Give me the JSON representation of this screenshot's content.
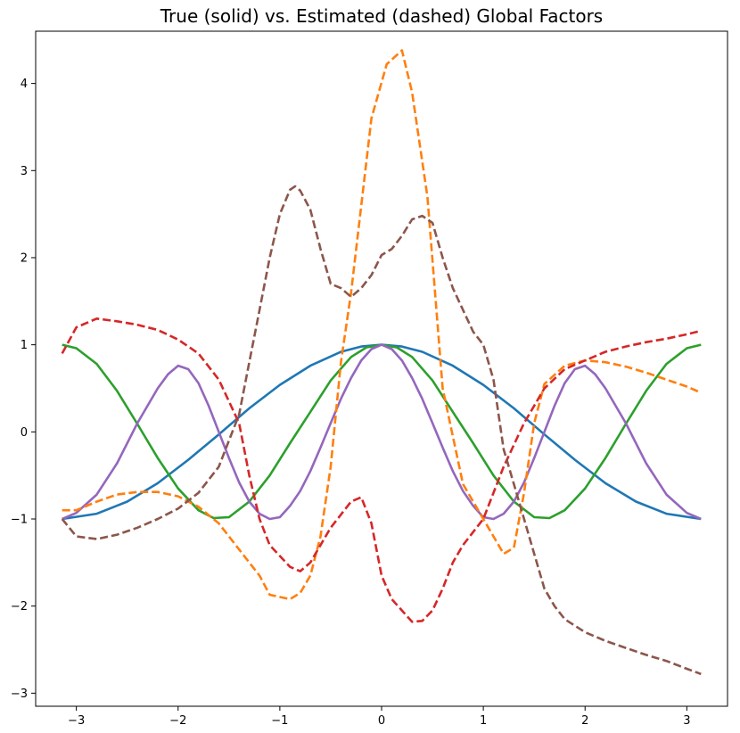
{
  "chart_data": {
    "type": "line",
    "title": "True (solid) vs. Estimated (dashed) Global Factors",
    "xlabel": "",
    "ylabel": "",
    "xlim": [
      -3.4,
      3.4
    ],
    "ylim": [
      -3.15,
      4.6
    ],
    "xticks": [
      -3,
      -2,
      -1,
      0,
      1,
      2,
      3
    ],
    "xtick_labels": [
      "−3",
      "−2",
      "−1",
      "0",
      "1",
      "2",
      "3"
    ],
    "yticks": [
      -3,
      -2,
      -1,
      0,
      1,
      2,
      3,
      4
    ],
    "ytick_labels": [
      "−3",
      "−2",
      "−1",
      "0",
      "1",
      "2",
      "3",
      "4"
    ],
    "grid": false,
    "legend": "none",
    "series": [
      {
        "color": "#1f77b4",
        "style": "solid",
        "x": [
          -3.14,
          -2.8,
          -2.5,
          -2.2,
          -1.9,
          -1.6,
          -1.3,
          -1.0,
          -0.7,
          -0.4,
          -0.2,
          0,
          0.2,
          0.4,
          0.7,
          1.0,
          1.3,
          1.6,
          1.9,
          2.2,
          2.5,
          2.8,
          3.14
        ],
        "y": [
          -1.0,
          -0.94,
          -0.8,
          -0.59,
          -0.32,
          -0.03,
          0.27,
          0.54,
          0.76,
          0.92,
          0.98,
          1.0,
          0.98,
          0.92,
          0.76,
          0.54,
          0.27,
          -0.03,
          -0.32,
          -0.59,
          -0.8,
          -0.94,
          -1.0
        ]
      },
      {
        "color": "#2ca02c",
        "style": "solid",
        "x": [
          -3.14,
          -3.0,
          -2.8,
          -2.6,
          -2.4,
          -2.2,
          -2.0,
          -1.8,
          -1.65,
          -1.5,
          -1.3,
          -1.1,
          -0.9,
          -0.7,
          -0.5,
          -0.3,
          -0.15,
          0,
          0.15,
          0.3,
          0.5,
          0.7,
          0.9,
          1.1,
          1.3,
          1.5,
          1.65,
          1.8,
          2.0,
          2.2,
          2.4,
          2.6,
          2.8,
          3.0,
          3.14
        ],
        "y": [
          1.0,
          0.96,
          0.78,
          0.47,
          0.09,
          -0.3,
          -0.65,
          -0.9,
          -0.99,
          -0.98,
          -0.8,
          -0.5,
          -0.13,
          0.23,
          0.59,
          0.86,
          0.97,
          1.0,
          0.97,
          0.86,
          0.59,
          0.23,
          -0.13,
          -0.5,
          -0.8,
          -0.98,
          -0.99,
          -0.9,
          -0.65,
          -0.3,
          0.09,
          0.47,
          0.78,
          0.96,
          1.0
        ]
      },
      {
        "color": "#9467bd",
        "style": "solid",
        "x": [
          -3.14,
          -3.0,
          -2.8,
          -2.6,
          -2.4,
          -2.2,
          -2.1,
          -2.0,
          -1.9,
          -1.8,
          -1.7,
          -1.6,
          -1.5,
          -1.4,
          -1.3,
          -1.2,
          -1.1,
          -1.0,
          -0.9,
          -0.8,
          -0.7,
          -0.6,
          -0.5,
          -0.4,
          -0.3,
          -0.2,
          -0.1,
          0,
          0.1,
          0.2,
          0.3,
          0.4,
          0.5,
          0.6,
          0.7,
          0.8,
          0.9,
          1.0,
          1.1,
          1.2,
          1.3,
          1.4,
          1.5,
          1.6,
          1.7,
          1.8,
          1.9,
          2.0,
          2.1,
          2.2,
          2.3,
          2.4,
          2.6,
          2.8,
          3.0,
          3.14
        ],
        "y": [
          -1.0,
          -0.93,
          -0.72,
          -0.36,
          0.1,
          0.5,
          0.66,
          0.76,
          0.72,
          0.56,
          0.3,
          0.0,
          -0.3,
          -0.58,
          -0.8,
          -0.94,
          -1.0,
          -0.98,
          -0.85,
          -0.68,
          -0.45,
          -0.18,
          0.1,
          0.38,
          0.62,
          0.82,
          0.95,
          1.0,
          0.95,
          0.82,
          0.62,
          0.38,
          0.1,
          -0.18,
          -0.45,
          -0.68,
          -0.85,
          -0.98,
          -1.0,
          -0.94,
          -0.8,
          -0.58,
          -0.3,
          0.0,
          0.3,
          0.56,
          0.72,
          0.76,
          0.66,
          0.5,
          0.3,
          0.1,
          -0.36,
          -0.72,
          -0.93,
          -1.0
        ]
      },
      {
        "color": "#ff7f0e",
        "style": "dashed",
        "x": [
          -3.14,
          -3.0,
          -2.8,
          -2.6,
          -2.4,
          -2.2,
          -2.0,
          -1.8,
          -1.6,
          -1.4,
          -1.2,
          -1.1,
          -0.9,
          -0.8,
          -0.7,
          -0.6,
          -0.5,
          -0.4,
          -0.3,
          -0.2,
          -0.1,
          0.05,
          0.2,
          0.3,
          0.45,
          0.6,
          0.8,
          1.0,
          1.1,
          1.2,
          1.3,
          1.4,
          1.5,
          1.6,
          1.8,
          2.0,
          2.2,
          2.4,
          2.6,
          2.8,
          3.0,
          3.14
        ],
        "y": [
          -0.9,
          -0.9,
          -0.8,
          -0.72,
          -0.69,
          -0.69,
          -0.74,
          -0.86,
          -1.05,
          -1.35,
          -1.65,
          -1.87,
          -1.92,
          -1.85,
          -1.65,
          -1.2,
          -0.4,
          0.8,
          1.6,
          2.6,
          3.6,
          4.22,
          4.38,
          3.9,
          2.7,
          0.5,
          -0.6,
          -1.0,
          -1.2,
          -1.4,
          -1.33,
          -0.7,
          0.1,
          0.55,
          0.76,
          0.82,
          0.8,
          0.75,
          0.68,
          0.6,
          0.52,
          0.45
        ]
      },
      {
        "color": "#d62728",
        "style": "dashed",
        "x": [
          -3.14,
          -3.0,
          -2.8,
          -2.6,
          -2.4,
          -2.2,
          -2.0,
          -1.8,
          -1.6,
          -1.4,
          -1.3,
          -1.2,
          -1.1,
          -0.9,
          -0.8,
          -0.7,
          -0.5,
          -0.3,
          -0.2,
          -0.1,
          0,
          0.1,
          0.2,
          0.3,
          0.4,
          0.5,
          0.6,
          0.7,
          0.8,
          1.0,
          1.2,
          1.4,
          1.6,
          1.8,
          2.0,
          2.2,
          2.4,
          2.6,
          2.8,
          3.0,
          3.14
        ],
        "y": [
          0.9,
          1.2,
          1.3,
          1.27,
          1.23,
          1.17,
          1.06,
          0.9,
          0.6,
          0.1,
          -0.5,
          -1.0,
          -1.3,
          -1.55,
          -1.6,
          -1.5,
          -1.1,
          -0.8,
          -0.75,
          -1.05,
          -1.65,
          -1.92,
          -2.05,
          -2.18,
          -2.17,
          -2.05,
          -1.8,
          -1.5,
          -1.3,
          -1.0,
          -0.4,
          0.1,
          0.5,
          0.72,
          0.82,
          0.92,
          0.98,
          1.03,
          1.07,
          1.12,
          1.16
        ]
      },
      {
        "color": "#8c564b",
        "style": "dashed",
        "x": [
          -3.14,
          -3.0,
          -2.8,
          -2.6,
          -2.4,
          -2.2,
          -2.0,
          -1.8,
          -1.6,
          -1.4,
          -1.3,
          -1.2,
          -1.1,
          -1.0,
          -0.9,
          -0.85,
          -0.8,
          -0.7,
          -0.6,
          -0.5,
          -0.4,
          -0.3,
          -0.2,
          -0.1,
          0,
          0.1,
          0.2,
          0.3,
          0.4,
          0.5,
          0.6,
          0.7,
          0.8,
          0.9,
          1.0,
          1.1,
          1.2,
          1.3,
          1.4,
          1.5,
          1.6,
          1.7,
          1.8,
          2.0,
          2.2,
          2.4,
          2.6,
          2.8,
          3.0,
          3.14
        ],
        "y": [
          -1.0,
          -1.2,
          -1.23,
          -1.18,
          -1.1,
          -1.0,
          -0.88,
          -0.7,
          -0.4,
          0.2,
          0.8,
          1.4,
          2.0,
          2.5,
          2.78,
          2.82,
          2.77,
          2.55,
          2.1,
          1.7,
          1.65,
          1.55,
          1.65,
          1.8,
          2.03,
          2.1,
          2.25,
          2.44,
          2.48,
          2.4,
          2.0,
          1.65,
          1.4,
          1.15,
          1.0,
          0.6,
          -0.2,
          -0.6,
          -1.0,
          -1.4,
          -1.8,
          -2.0,
          -2.15,
          -2.3,
          -2.4,
          -2.48,
          -2.56,
          -2.63,
          -2.72,
          -2.78
        ]
      }
    ]
  }
}
